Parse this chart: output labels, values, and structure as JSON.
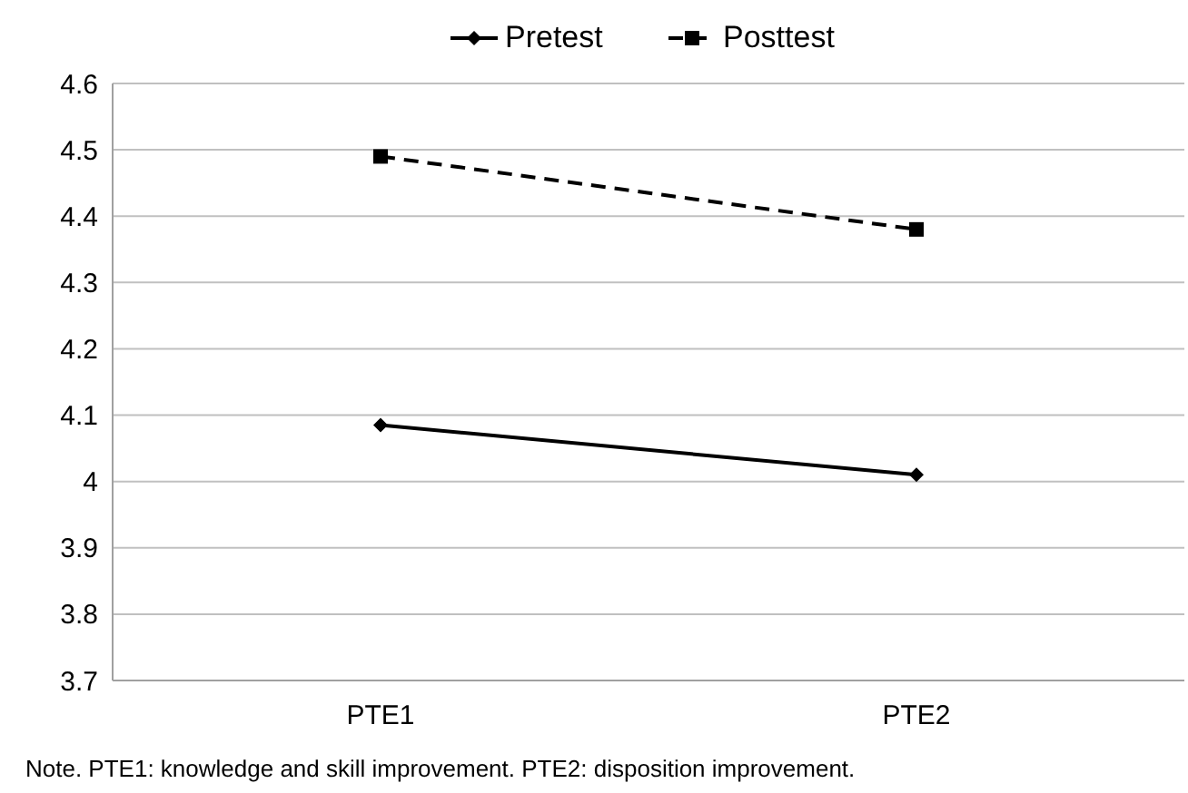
{
  "chart_data": {
    "type": "line",
    "categories": [
      "PTE1",
      "PTE2"
    ],
    "series": [
      {
        "name": "Pretest",
        "color": "#000000",
        "values": [
          4.085,
          4.01
        ],
        "marker": "diamond",
        "line_style": "solid"
      },
      {
        "name": "Posttest",
        "color": "#000000",
        "values": [
          4.49,
          4.38
        ],
        "marker": "square",
        "line_style": "dashed"
      }
    ],
    "ylim": [
      3.7,
      4.6
    ],
    "yticks": [
      3.7,
      3.8,
      3.9,
      4,
      4.1,
      4.2,
      4.3,
      4.4,
      4.5,
      4.6
    ],
    "grid": "y",
    "legend": "top",
    "annotations": [
      "Note. PTE1: knowledge and skill improvement. PTE2: disposition improvement."
    ]
  }
}
